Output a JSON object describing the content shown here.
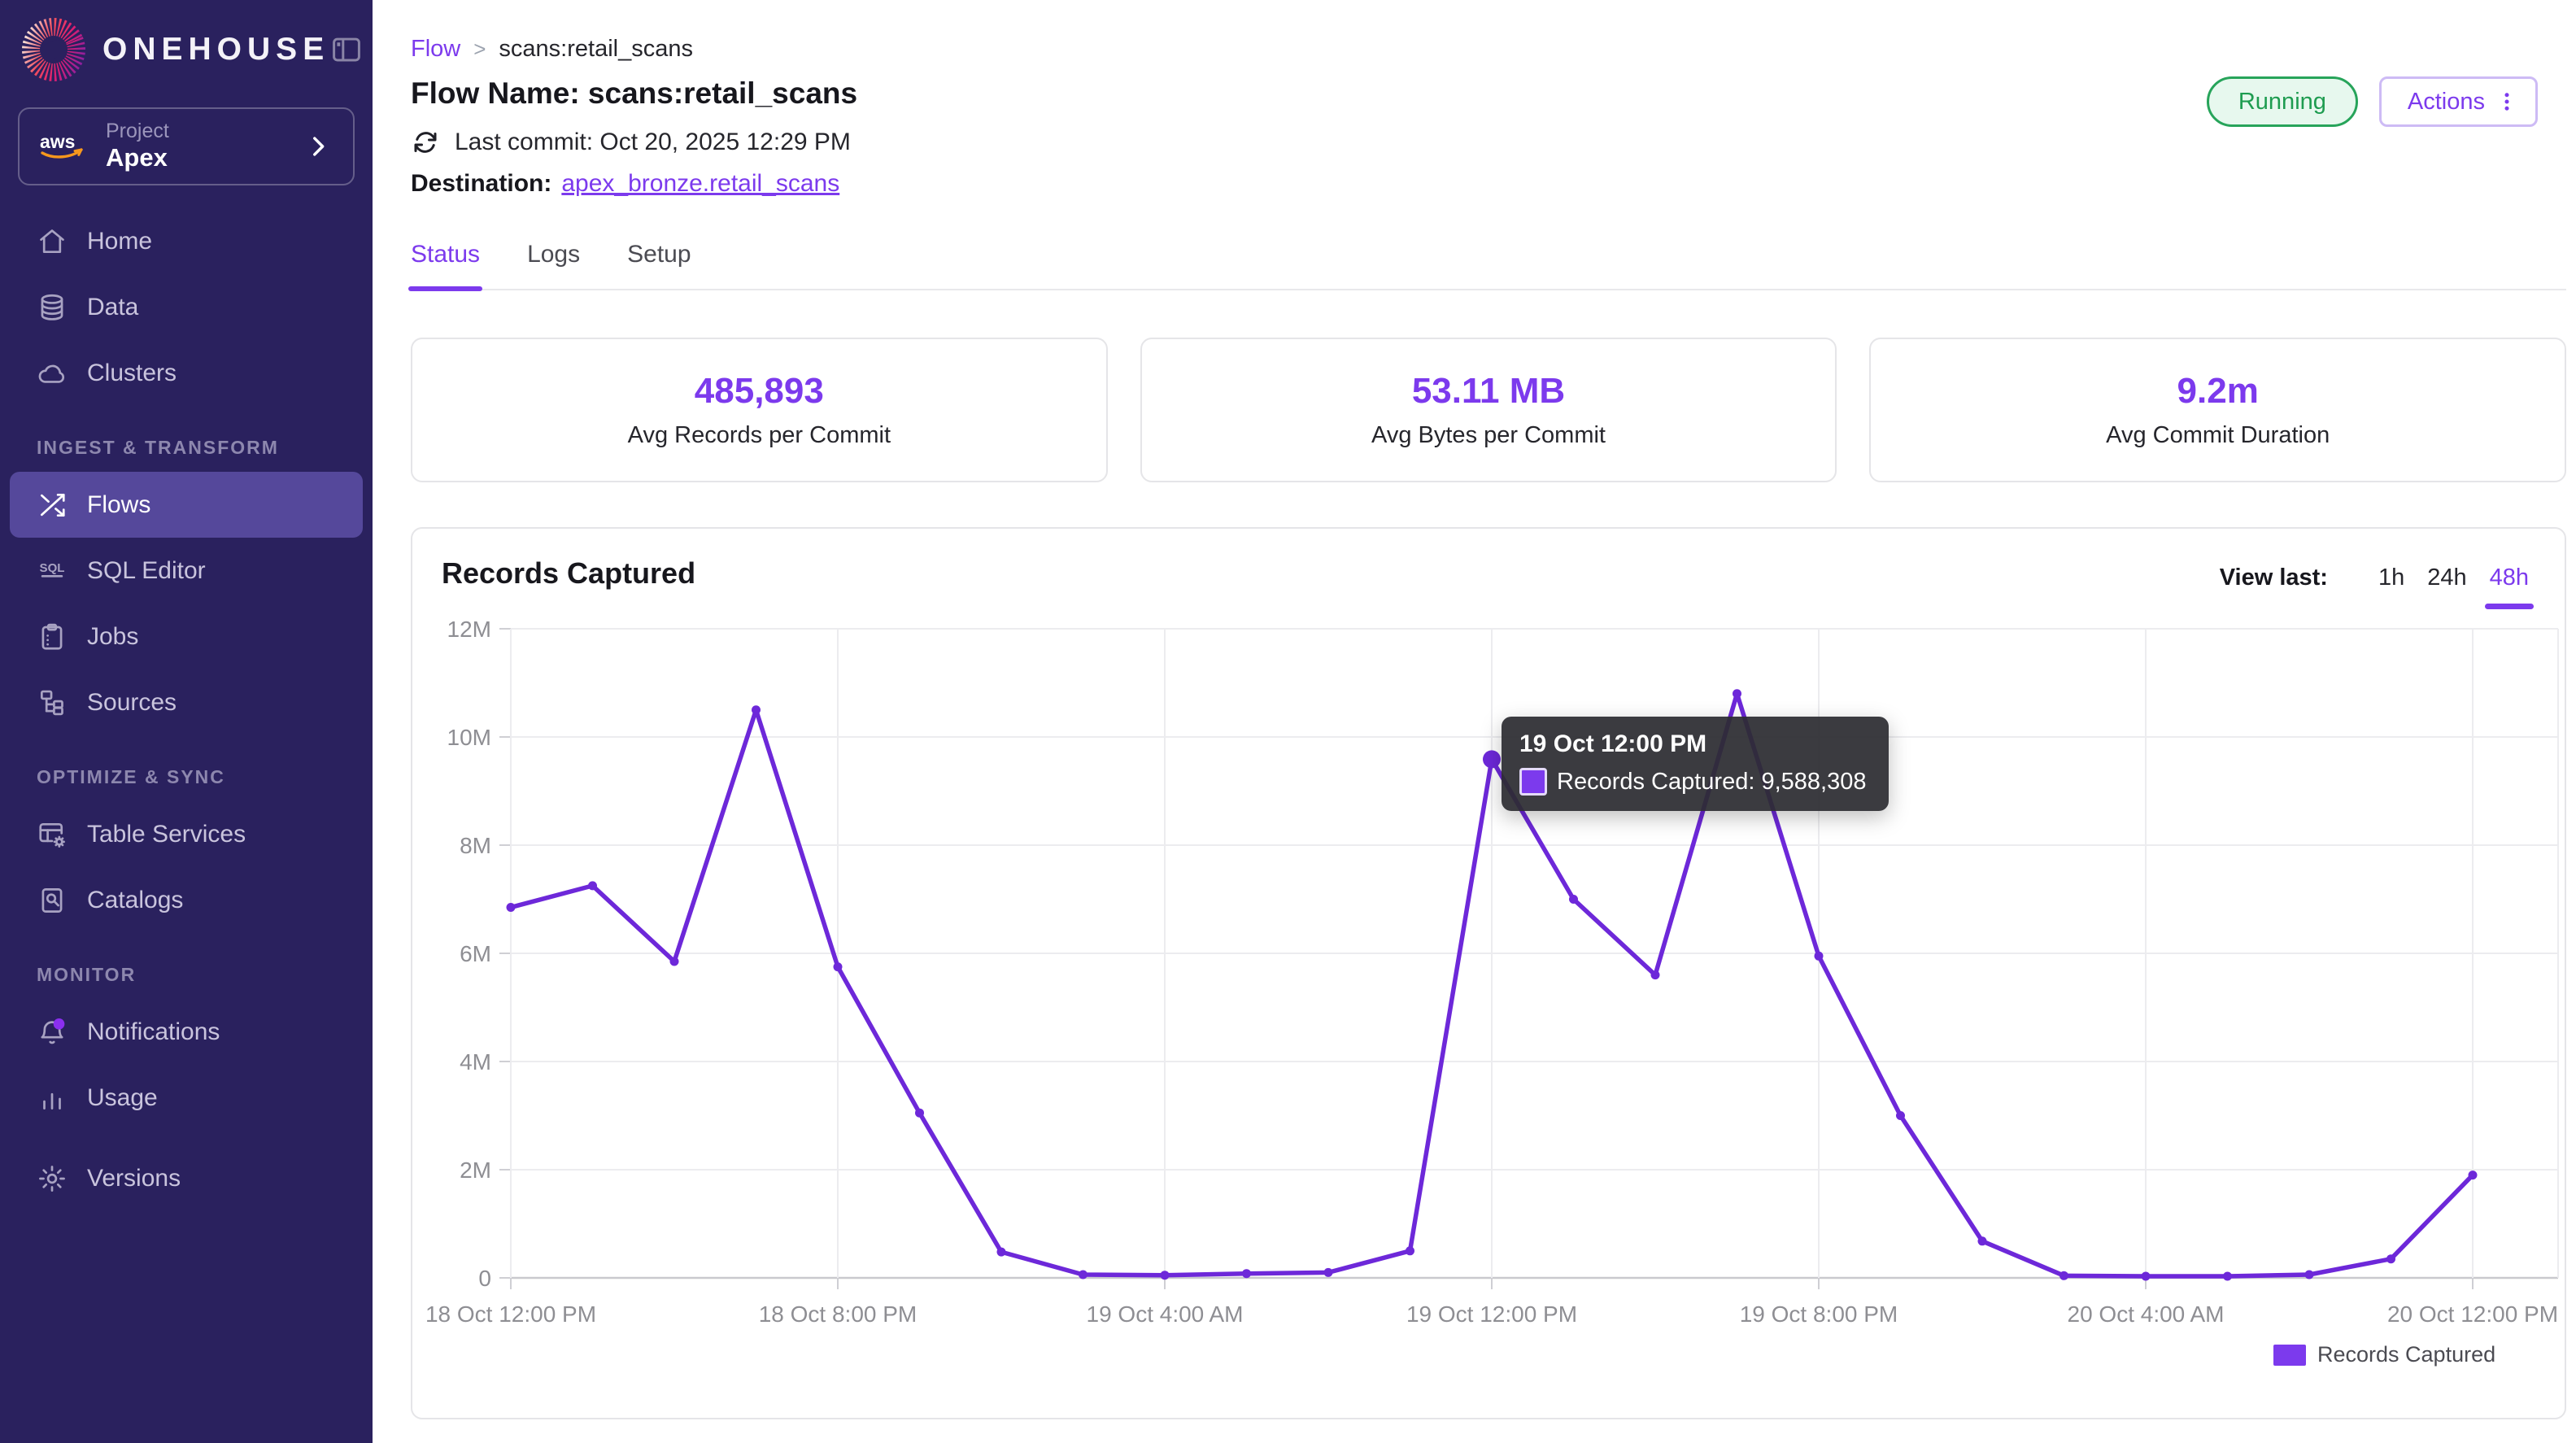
{
  "sidebar": {
    "brand": "ONEHOUSE",
    "project": {
      "label": "Project",
      "name": "Apex",
      "provider": "aws"
    },
    "sections": [
      {
        "label": "",
        "items": [
          {
            "id": "home",
            "label": "Home"
          },
          {
            "id": "data",
            "label": "Data"
          },
          {
            "id": "clusters",
            "label": "Clusters"
          }
        ]
      },
      {
        "label": "INGEST & TRANSFORM",
        "items": [
          {
            "id": "flows",
            "label": "Flows",
            "active": true
          },
          {
            "id": "sql-editor",
            "label": "SQL Editor"
          },
          {
            "id": "jobs",
            "label": "Jobs"
          },
          {
            "id": "sources",
            "label": "Sources"
          }
        ]
      },
      {
        "label": "OPTIMIZE & SYNC",
        "items": [
          {
            "id": "table-services",
            "label": "Table Services"
          },
          {
            "id": "catalogs",
            "label": "Catalogs"
          }
        ]
      },
      {
        "label": "MONITOR",
        "items": [
          {
            "id": "notifications",
            "label": "Notifications",
            "badge": true
          },
          {
            "id": "usage",
            "label": "Usage"
          },
          {
            "id": "versions",
            "label": "Versions"
          }
        ]
      }
    ]
  },
  "header": {
    "breadcrumb": {
      "parent": "Flow",
      "separator": ">",
      "current": "scans:retail_scans"
    },
    "title": "Flow Name: scans:retail_scans",
    "last_commit": "Last commit: Oct 20, 2025 12:29 PM",
    "destination_label": "Destination:",
    "destination_link": "apex_bronze.retail_scans",
    "status_badge": "Running",
    "actions_label": "Actions"
  },
  "tabs": [
    {
      "label": "Status",
      "active": true
    },
    {
      "label": "Logs",
      "active": false
    },
    {
      "label": "Setup",
      "active": false
    }
  ],
  "stats": [
    {
      "value": "485,893",
      "label": "Avg Records per Commit"
    },
    {
      "value": "53.11 MB",
      "label": "Avg Bytes per Commit"
    },
    {
      "value": "9.2m",
      "label": "Avg Commit Duration"
    }
  ],
  "chart_data": {
    "type": "line",
    "title": "Records Captured",
    "view_last": {
      "label": "View last:",
      "options": [
        "1h",
        "24h",
        "48h"
      ],
      "selected": "48h"
    },
    "x": [
      "18 Oct 12:00 PM",
      "18 Oct 2:00 PM",
      "18 Oct 4:00 PM",
      "18 Oct 6:00 PM",
      "18 Oct 8:00 PM",
      "18 Oct 10:00 PM",
      "19 Oct 12:00 AM",
      "19 Oct 2:00 AM",
      "19 Oct 4:00 AM",
      "19 Oct 6:00 AM",
      "19 Oct 8:00 AM",
      "19 Oct 10:00 AM",
      "19 Oct 12:00 PM",
      "19 Oct 2:00 PM",
      "19 Oct 4:00 PM",
      "19 Oct 6:00 PM",
      "19 Oct 8:00 PM",
      "19 Oct 10:00 PM",
      "20 Oct 12:00 AM",
      "20 Oct 2:00 AM",
      "20 Oct 4:00 AM",
      "20 Oct 6:00 AM",
      "20 Oct 8:00 AM",
      "20 Oct 10:00 AM",
      "20 Oct 12:00 PM"
    ],
    "x_tick_labels": [
      "18 Oct 12:00 PM",
      "18 Oct 8:00 PM",
      "19 Oct 4:00 AM",
      "19 Oct 12:00 PM",
      "19 Oct 8:00 PM",
      "20 Oct 4:00 AM",
      "20 Oct 12:00 PM"
    ],
    "series": [
      {
        "name": "Records Captured",
        "color": "#6D28D9",
        "values": [
          6850000,
          7250000,
          5850000,
          10500000,
          5750000,
          3050000,
          480000,
          60000,
          50000,
          80000,
          100000,
          500000,
          9588308,
          7000000,
          5600000,
          10800000,
          5950000,
          3000000,
          680000,
          40000,
          30000,
          30000,
          60000,
          350000,
          1900000
        ]
      }
    ],
    "ylim": [
      0,
      12000000
    ],
    "y_tick_labels": [
      "12M",
      "10M",
      "8M",
      "6M",
      "4M",
      "2M",
      "0"
    ],
    "grid": true,
    "legend_position": "bottom-right",
    "legend": [
      "Records Captured"
    ],
    "tooltip": {
      "title": "19 Oct 12:00 PM",
      "series": "Records Captured",
      "value": "9,588,308",
      "point_index": 12
    }
  }
}
